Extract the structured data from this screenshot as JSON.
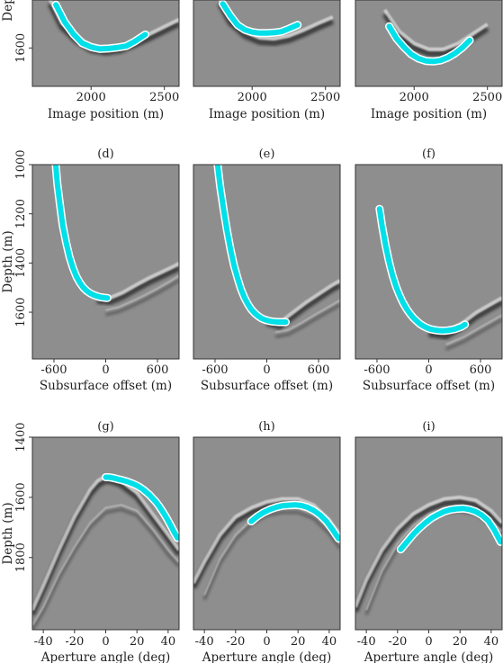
{
  "chart_data": [
    {
      "type": "image",
      "label": "",
      "xlabel": "Image position (m)",
      "ylabel": "Dep",
      "xlim": [
        1600,
        2600
      ],
      "ylim": [
        1500,
        1680
      ],
      "xticks": [
        {
          "v": 2000,
          "t": "2000"
        },
        {
          "v": 2500,
          "t": "2500"
        }
      ],
      "yticks": [
        {
          "v": 1600,
          "t": "1600"
        }
      ],
      "bands": [
        {
          "x": [
            1720,
            1800,
            1900,
            2000,
            2100,
            2200,
            2300,
            2400,
            2500,
            2600
          ],
          "y": [
            1508,
            1557,
            1586,
            1605,
            1610,
            1606,
            1594,
            1580,
            1565,
            1550
          ]
        }
      ],
      "pick": {
        "x": [
          1760,
          1820,
          1880,
          1940,
          2000,
          2060,
          2120,
          2180,
          2240,
          2300,
          2370
        ],
        "y": [
          1510,
          1546,
          1571,
          1590,
          1598,
          1602,
          1601,
          1599,
          1596,
          1586,
          1572
        ]
      }
    },
    {
      "type": "image",
      "label": "",
      "xlabel": "Image position (m)",
      "ylabel": "",
      "xlim": [
        1600,
        2600
      ],
      "ylim": [
        1500,
        1680
      ],
      "xticks": [
        {
          "v": 2000,
          "t": "2000"
        },
        {
          "v": 2500,
          "t": "2500"
        }
      ],
      "yticks": [],
      "bands": [
        {
          "x": [
            1780,
            1850,
            1950,
            2050,
            2150,
            2250,
            2350,
            2450,
            2550
          ],
          "y": [
            1508,
            1548,
            1575,
            1588,
            1590,
            1584,
            1572,
            1558,
            1545
          ]
        }
      ],
      "pick": {
        "x": [
          1800,
          1850,
          1900,
          1950,
          2000,
          2050,
          2100,
          2150,
          2200,
          2250,
          2310
        ],
        "y": [
          1508,
          1532,
          1552,
          1562,
          1567,
          1569,
          1569,
          1568,
          1566,
          1560,
          1552
        ]
      }
    },
    {
      "type": "image",
      "label": "",
      "xlabel": "Image position (m)",
      "ylabel": "",
      "xlim": [
        1600,
        2600
      ],
      "ylim": [
        1500,
        1680
      ],
      "xticks": [
        {
          "v": 2000,
          "t": "2000"
        },
        {
          "v": 2500,
          "t": "2500"
        }
      ],
      "yticks": [],
      "bands": [
        {
          "x": [
            1800,
            1900,
            2000,
            2100,
            2200,
            2300,
            2400,
            2500
          ],
          "y": [
            1530,
            1575,
            1600,
            1612,
            1612,
            1600,
            1580,
            1560
          ]
        }
      ],
      "pick": {
        "x": [
          1830,
          1880,
          1930,
          1980,
          2030,
          2080,
          2130,
          2180,
          2230,
          2280,
          2330,
          2380
        ],
        "y": [
          1555,
          1580,
          1598,
          1613,
          1622,
          1627,
          1628,
          1626,
          1620,
          1611,
          1599,
          1584
        ]
      }
    },
    {
      "type": "image",
      "label": "(d)",
      "xlabel": "Subsurface offset (m)",
      "ylabel": "Depth (m)",
      "xlim": [
        -850,
        850
      ],
      "ylim": [
        1000,
        1790
      ],
      "xticks": [
        {
          "v": -600,
          "t": "-600"
        },
        {
          "v": 0,
          "t": "0"
        },
        {
          "v": 600,
          "t": "600"
        }
      ],
      "yticks": [
        {
          "v": 1000,
          "t": "1000"
        },
        {
          "v": 1200,
          "t": "1200"
        },
        {
          "v": 1400,
          "t": "1400"
        },
        {
          "v": 1600,
          "t": "1600"
        }
      ],
      "bands": [
        {
          "x": [
            -100,
            50,
            200,
            350,
            500,
            650,
            800,
            850
          ],
          "y": [
            1555,
            1560,
            1538,
            1508,
            1480,
            1455,
            1430,
            1420
          ]
        },
        {
          "x": [
            0,
            150,
            300,
            450,
            600,
            750,
            850
          ],
          "y": [
            1610,
            1598,
            1575,
            1550,
            1522,
            1492,
            1470
          ]
        }
      ],
      "pick": {
        "x": [
          -580,
          -560,
          -530,
          -500,
          -460,
          -420,
          -380,
          -340,
          -300,
          -260,
          -220,
          -180,
          -140,
          -100,
          -60,
          -20,
          0,
          20
        ],
        "y": [
          1000,
          1080,
          1165,
          1245,
          1315,
          1375,
          1420,
          1455,
          1480,
          1500,
          1513,
          1523,
          1530,
          1535,
          1539,
          1541,
          1542,
          1542
        ]
      }
    },
    {
      "type": "image",
      "label": "(e)",
      "xlabel": "Subsurface offset (m)",
      "ylabel": "",
      "xlim": [
        -850,
        850
      ],
      "ylim": [
        1000,
        1790
      ],
      "xticks": [
        {
          "v": -600,
          "t": "-600"
        },
        {
          "v": 0,
          "t": "0"
        },
        {
          "v": 600,
          "t": "600"
        }
      ],
      "yticks": [],
      "bands": [
        {
          "x": [
            0,
            150,
            300,
            450,
            600,
            750,
            850
          ],
          "y": [
            1645,
            1660,
            1620,
            1580,
            1545,
            1510,
            1490
          ]
        },
        {
          "x": [
            100,
            250,
            400,
            550,
            700,
            850
          ],
          "y": [
            1700,
            1690,
            1662,
            1630,
            1600,
            1570
          ]
        }
      ],
      "pick": {
        "x": [
          -570,
          -540,
          -500,
          -460,
          -420,
          -380,
          -340,
          -300,
          -260,
          -220,
          -180,
          -140,
          -100,
          -60,
          -20,
          20,
          60,
          100,
          140,
          180,
          220
        ],
        "y": [
          1000,
          1090,
          1185,
          1270,
          1345,
          1410,
          1460,
          1505,
          1540,
          1567,
          1588,
          1604,
          1616,
          1625,
          1631,
          1635,
          1638,
          1639,
          1640,
          1640,
          1640
        ]
      }
    },
    {
      "type": "image",
      "label": "(f)",
      "xlabel": "Subsurface offset (m)",
      "ylabel": "",
      "xlim": [
        -850,
        850
      ],
      "ylim": [
        1000,
        1790
      ],
      "xticks": [
        {
          "v": -600,
          "t": "-600"
        },
        {
          "v": 0,
          "t": "0"
        },
        {
          "v": 600,
          "t": "600"
        }
      ],
      "yticks": [],
      "bands": [
        {
          "x": [
            0,
            200,
            400,
            550,
            700,
            850
          ],
          "y": [
            1690,
            1700,
            1660,
            1620,
            1590,
            1560
          ]
        },
        {
          "x": [
            200,
            400,
            600,
            750,
            850
          ],
          "y": [
            1750,
            1720,
            1680,
            1650,
            1630
          ]
        }
      ],
      "pick": {
        "x": [
          -570,
          -540,
          -500,
          -460,
          -420,
          -380,
          -340,
          -300,
          -260,
          -220,
          -180,
          -140,
          -100,
          -60,
          -20,
          20,
          60,
          100,
          140,
          180,
          220,
          260,
          300,
          340,
          380,
          420
        ],
        "y": [
          1180,
          1250,
          1330,
          1395,
          1450,
          1495,
          1530,
          1560,
          1585,
          1605,
          1622,
          1636,
          1648,
          1657,
          1664,
          1669,
          1672,
          1674,
          1675,
          1675,
          1674,
          1672,
          1669,
          1664,
          1659,
          1650
        ]
      }
    },
    {
      "type": "image",
      "label": "(g)",
      "xlabel": "Aperture angle (deg)",
      "ylabel": "Depth (m)",
      "xlim": [
        -47,
        47
      ],
      "ylim": [
        1400,
        2040
      ],
      "xticks": [
        {
          "v": -40,
          "t": "-40"
        },
        {
          "v": -20,
          "t": "-20"
        },
        {
          "v": 0,
          "t": "0"
        },
        {
          "v": 20,
          "t": "20"
        },
        {
          "v": 40,
          "t": "40"
        }
      ],
      "yticks": [
        {
          "v": 1400,
          "t": "1400"
        },
        {
          "v": 1600,
          "t": "1600"
        },
        {
          "v": 1800,
          "t": "1800"
        }
      ],
      "bands": [
        {
          "x": [
            -47,
            -40,
            -30,
            -20,
            -10,
            -5,
            0,
            5,
            10,
            20,
            30,
            40,
            47
          ],
          "y": [
            1990,
            1910,
            1790,
            1680,
            1590,
            1560,
            1545,
            1550,
            1560,
            1600,
            1670,
            1740,
            1790
          ]
        },
        {
          "x": [
            -47,
            -40,
            -30,
            -20,
            -10,
            0,
            10,
            20,
            30,
            40,
            47
          ],
          "y": [
            2040,
            1980,
            1870,
            1780,
            1700,
            1650,
            1640,
            1660,
            1720,
            1790,
            1830
          ]
        }
      ],
      "pick": {
        "x": [
          0,
          2,
          4,
          6,
          8,
          10,
          12,
          14,
          16,
          18,
          20,
          22,
          24,
          26,
          28,
          30,
          32,
          34,
          36,
          38,
          40,
          42,
          44,
          46
        ],
        "y": [
          1533,
          1533,
          1535,
          1537,
          1540,
          1542,
          1545,
          1548,
          1552,
          1556,
          1561,
          1567,
          1574,
          1583,
          1592,
          1603,
          1614,
          1628,
          1643,
          1660,
          1678,
          1697,
          1717,
          1735
        ]
      }
    },
    {
      "type": "image",
      "label": "(h)",
      "xlabel": "Aperture angle (deg)",
      "ylabel": "",
      "xlim": [
        -47,
        47
      ],
      "ylim": [
        1400,
        2040
      ],
      "xticks": [
        {
          "v": -40,
          "t": "-40"
        },
        {
          "v": -20,
          "t": "-20"
        },
        {
          "v": 0,
          "t": "0"
        },
        {
          "v": 20,
          "t": "20"
        },
        {
          "v": 40,
          "t": "40"
        }
      ],
      "yticks": [],
      "bands": [
        {
          "x": [
            -47,
            -40,
            -30,
            -20,
            -10,
            0,
            10,
            20,
            30,
            40,
            47
          ],
          "y": [
            1900,
            1830,
            1740,
            1680,
            1650,
            1630,
            1620,
            1620,
            1640,
            1690,
            1740
          ]
        },
        {
          "x": [
            -40,
            -30,
            -20,
            -10,
            0,
            10,
            20,
            30,
            40,
            47
          ],
          "y": [
            1940,
            1820,
            1740,
            1690,
            1660,
            1650,
            1650,
            1670,
            1720,
            1770
          ]
        }
      ],
      "pick": {
        "x": [
          -10,
          -6,
          -2,
          2,
          6,
          10,
          14,
          18,
          22,
          26,
          30,
          34,
          38,
          42,
          46
        ],
        "y": [
          1680,
          1663,
          1650,
          1640,
          1633,
          1628,
          1626,
          1625,
          1627,
          1633,
          1643,
          1658,
          1678,
          1706,
          1737
        ]
      }
    },
    {
      "type": "image",
      "label": "(i)",
      "xlabel": "Aperture angle (deg)",
      "ylabel": "",
      "xlim": [
        -47,
        47
      ],
      "ylim": [
        1400,
        2040
      ],
      "xticks": [
        {
          "v": -40,
          "t": "-40"
        },
        {
          "v": -20,
          "t": "-20"
        },
        {
          "v": 0,
          "t": "0"
        },
        {
          "v": 20,
          "t": "20"
        },
        {
          "v": 40,
          "t": "40"
        }
      ],
      "yticks": [],
      "bands": [
        {
          "x": [
            -47,
            -40,
            -30,
            -20,
            -10,
            0,
            10,
            20,
            30,
            40,
            47
          ],
          "y": [
            1980,
            1890,
            1790,
            1720,
            1670,
            1640,
            1620,
            1615,
            1625,
            1660,
            1700
          ]
        },
        {
          "x": [
            -40,
            -30,
            -20,
            -10,
            0,
            10,
            20,
            30,
            40,
            47
          ],
          "y": [
            1990,
            1860,
            1770,
            1710,
            1670,
            1650,
            1645,
            1655,
            1690,
            1730
          ]
        }
      ],
      "pick": {
        "x": [
          -18,
          -14,
          -10,
          -6,
          -2,
          2,
          6,
          10,
          14,
          18,
          22,
          26,
          30,
          34,
          38,
          42,
          46
        ],
        "y": [
          1773,
          1748,
          1723,
          1702,
          1684,
          1668,
          1657,
          1647,
          1641,
          1638,
          1637,
          1640,
          1647,
          1659,
          1677,
          1708,
          1748
        ]
      }
    }
  ]
}
